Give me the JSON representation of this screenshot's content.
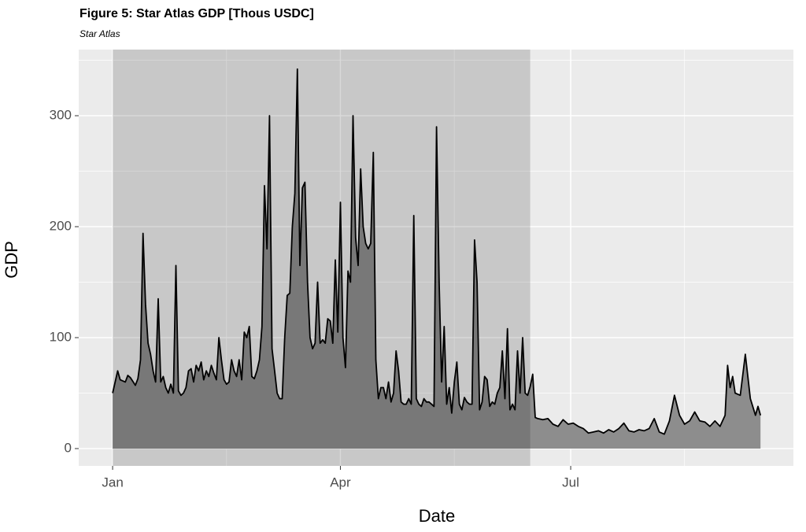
{
  "chart_data": {
    "type": "area",
    "title": "Figure 5: Star Atlas GDP [Thous USDC]",
    "subtitle": "Star Atlas",
    "x_label": "Date",
    "y_label": "GDP",
    "x": [
      0,
      2,
      3,
      5,
      6,
      7,
      9,
      10,
      11,
      12,
      13,
      14,
      15,
      16,
      17,
      18,
      19,
      20,
      21,
      22,
      23,
      24,
      25,
      26,
      27,
      28,
      29,
      30,
      31,
      32,
      33,
      34,
      35,
      36,
      37,
      38,
      39,
      40,
      41,
      42,
      43,
      44,
      45,
      46,
      47,
      48,
      49,
      50,
      51,
      52,
      53,
      54,
      55,
      56,
      57,
      58,
      59,
      60,
      61,
      62,
      63,
      64,
      65,
      66,
      67,
      68,
      69,
      70,
      71,
      72,
      73,
      74,
      75,
      76,
      77,
      78,
      79,
      80,
      81,
      82,
      83,
      84,
      85,
      86,
      87,
      88,
      89,
      90,
      91,
      92,
      93,
      94,
      95,
      96,
      97,
      98,
      99,
      100,
      101,
      102,
      103,
      104,
      105,
      106,
      107,
      108,
      109,
      110,
      111,
      112,
      113,
      114,
      115,
      116,
      117,
      118,
      119,
      120,
      121,
      122,
      123,
      124,
      125,
      126,
      127,
      128,
      129,
      130,
      131,
      132,
      133,
      134,
      135,
      136,
      137,
      138,
      139,
      140,
      141,
      142,
      143,
      144,
      145,
      146,
      147,
      148,
      149,
      150,
      151,
      152,
      153,
      154,
      155,
      156,
      157,
      158,
      159,
      160,
      161,
      162,
      163,
      164,
      165,
      166,
      167,
      168,
      170,
      172,
      174,
      176,
      178,
      180,
      182,
      184,
      186,
      188,
      190,
      192,
      194,
      196,
      198,
      200,
      202,
      204,
      206,
      208,
      210,
      212,
      214,
      216,
      218,
      220,
      222,
      224,
      226,
      228,
      230,
      232,
      234,
      236,
      238,
      240,
      242,
      243,
      244,
      245,
      246,
      248,
      250,
      252,
      254,
      255,
      256
    ],
    "values": [
      50,
      70,
      62,
      60,
      66,
      64,
      57,
      63,
      80,
      194,
      130,
      95,
      85,
      70,
      60,
      135,
      60,
      65,
      55,
      50,
      58,
      50,
      165,
      52,
      48,
      50,
      55,
      70,
      72,
      60,
      75,
      70,
      78,
      62,
      70,
      65,
      75,
      68,
      62,
      100,
      80,
      62,
      58,
      60,
      80,
      70,
      65,
      80,
      62,
      105,
      100,
      110,
      65,
      63,
      70,
      80,
      110,
      237,
      180,
      300,
      90,
      70,
      50,
      45,
      45,
      100,
      138,
      140,
      200,
      230,
      342,
      165,
      235,
      240,
      150,
      100,
      90,
      95,
      150,
      95,
      98,
      95,
      117,
      115,
      95,
      170,
      105,
      222,
      100,
      73,
      160,
      150,
      300,
      190,
      165,
      252,
      200,
      185,
      180,
      185,
      267,
      80,
      45,
      55,
      55,
      45,
      60,
      42,
      50,
      88,
      70,
      42,
      40,
      40,
      45,
      40,
      210,
      45,
      40,
      38,
      45,
      42,
      42,
      40,
      38,
      290,
      150,
      60,
      110,
      40,
      55,
      32,
      60,
      78,
      40,
      35,
      46,
      42,
      40,
      40,
      188,
      150,
      35,
      42,
      65,
      62,
      38,
      42,
      40,
      50,
      55,
      88,
      45,
      108,
      35,
      40,
      35,
      88,
      50,
      100,
      50,
      48,
      56,
      67,
      28,
      27,
      26,
      27,
      22,
      20,
      26,
      22,
      23,
      20,
      18,
      14,
      15,
      16,
      14,
      17,
      15,
      18,
      23,
      16,
      15,
      17,
      16,
      18,
      27,
      15,
      13,
      25,
      48,
      30,
      22,
      25,
      33,
      25,
      24,
      20,
      25,
      20,
      30,
      75,
      55,
      65,
      50,
      48,
      85,
      45,
      30,
      38,
      30
    ],
    "xlim": [
      -13.4,
      269
    ],
    "xticks": [
      {
        "value": 0,
        "label": "Jan"
      },
      {
        "value": 90,
        "label": "Apr"
      },
      {
        "value": 181,
        "label": "Jul"
      }
    ],
    "x_minor_ticks": [
      45,
      135,
      226
    ],
    "ylim": [
      -15.6,
      359.6
    ],
    "yticks": [
      0,
      100,
      200,
      300
    ],
    "y_minor_ticks": [
      50,
      150,
      250,
      350
    ],
    "highlight_x": [
      0,
      165
    ],
    "grid": true,
    "color": "#8d8d8d",
    "line_color": "#000000"
  }
}
